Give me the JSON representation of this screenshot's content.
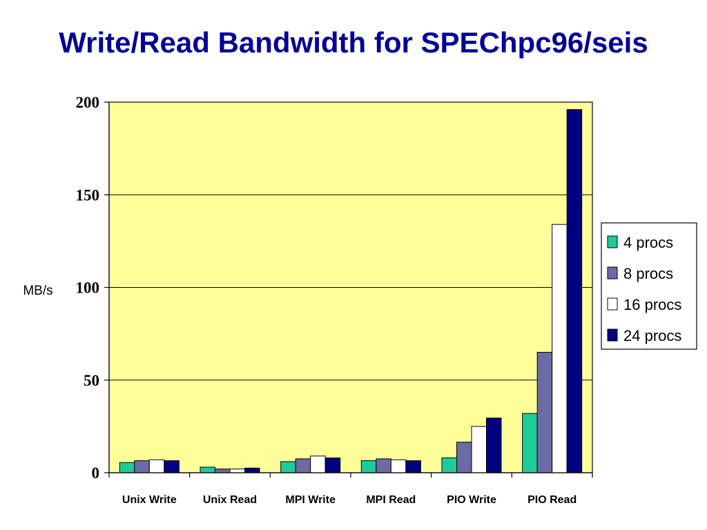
{
  "slide": {
    "title": "Write/Read Bandwidth for SPEChpc96/seis"
  },
  "chart_data": {
    "type": "bar",
    "title": "Write/Read Bandwidth for SPEChpc96/seis",
    "ylabel": "MB/s",
    "xlabel": "",
    "ylim": [
      0,
      200
    ],
    "yticks": [
      0,
      50,
      100,
      150,
      200
    ],
    "grid": true,
    "legend_position": "right",
    "plot_background": "#ffff99",
    "categories": [
      "Unix Write",
      "Unix Read",
      "MPI Write",
      "MPI Read",
      "PIO Write",
      "PIO Read"
    ],
    "series": [
      {
        "name": "4 procs",
        "color": "#1fcc99",
        "values": [
          5.5,
          3,
          6,
          6.5,
          8,
          32
        ]
      },
      {
        "name": "8 procs",
        "color": "#6b6ba6",
        "values": [
          6.5,
          2,
          7.5,
          7.5,
          16.5,
          65
        ]
      },
      {
        "name": "16 procs",
        "color": "#ffffff",
        "values": [
          7,
          2,
          9,
          7,
          25,
          134
        ]
      },
      {
        "name": "24 procs",
        "color": "#000080",
        "values": [
          6.5,
          2.5,
          8,
          6.5,
          29.5,
          196
        ]
      }
    ]
  }
}
